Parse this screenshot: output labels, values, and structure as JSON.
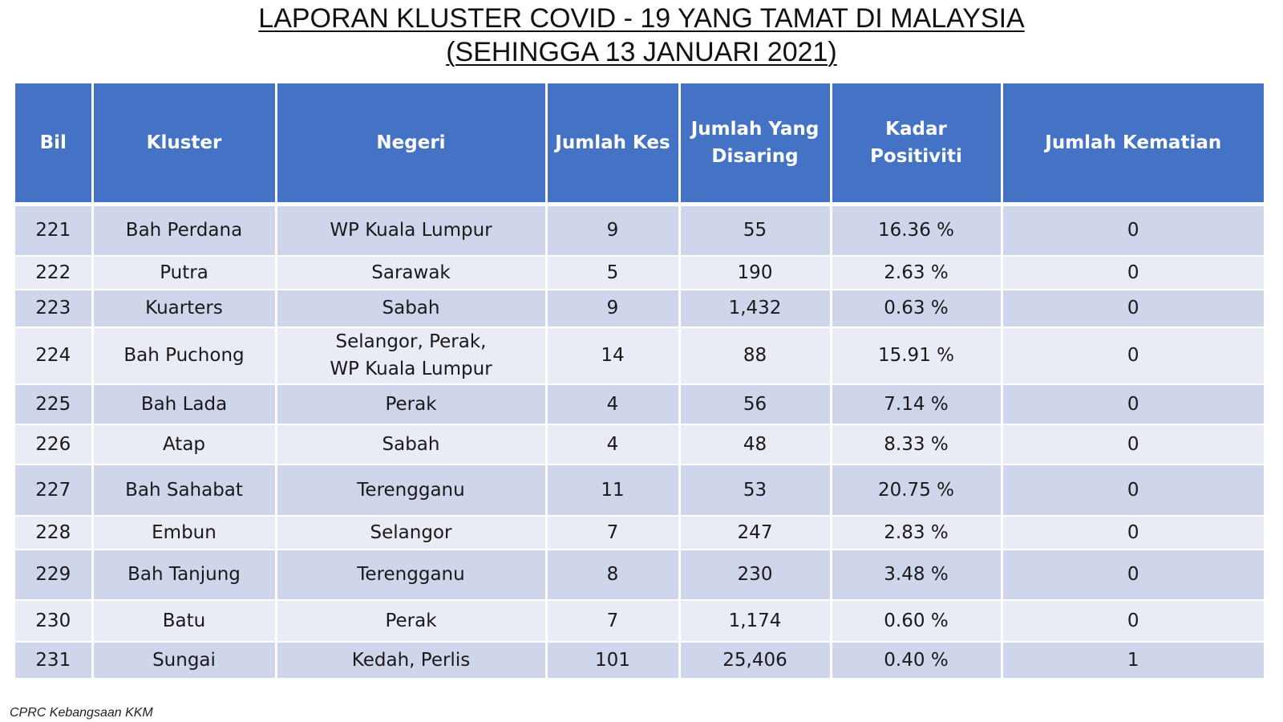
{
  "title": {
    "line1": "LAPORAN KLUSTER COVID - 19 YANG TAMAT DI MALAYSIA",
    "line2": "(SEHINGGA 13 JANUARI 2021)"
  },
  "colors": {
    "header_bg": "#4472c4",
    "row_dark": "#cfd5ea",
    "row_light": "#e9ebf5"
  },
  "table": {
    "headers": {
      "bil": "Bil",
      "kluster": "Kluster",
      "negeri": "Negeri",
      "jumlah_kes": "Jumlah Kes",
      "jumlah_disaring_line1": "Jumlah Yang",
      "jumlah_disaring_line2": "Disaring",
      "kadar_positiviti": "Kadar Positiviti",
      "jumlah_kematian": "Jumlah Kematian"
    },
    "rows": [
      {
        "bil": "221",
        "kluster": "Bah Perdana",
        "negeri_line1": "WP Kuala Lumpur",
        "negeri_line2": "",
        "kes": "9",
        "disaring": "55",
        "positiviti": "16.36 %",
        "kematian": "0"
      },
      {
        "bil": "222",
        "kluster": "Putra",
        "negeri_line1": "Sarawak",
        "negeri_line2": "",
        "kes": "5",
        "disaring": "190",
        "positiviti": "2.63 %",
        "kematian": "0"
      },
      {
        "bil": "223",
        "kluster": "Kuarters",
        "negeri_line1": "Sabah",
        "negeri_line2": "",
        "kes": "9",
        "disaring": "1,432",
        "positiviti": "0.63 %",
        "kematian": "0"
      },
      {
        "bil": "224",
        "kluster": "Bah Puchong",
        "negeri_line1": "Selangor, Perak,",
        "negeri_line2": "WP Kuala Lumpur",
        "kes": "14",
        "disaring": "88",
        "positiviti": "15.91 %",
        "kematian": "0"
      },
      {
        "bil": "225",
        "kluster": "Bah Lada",
        "negeri_line1": "Perak",
        "negeri_line2": "",
        "kes": "4",
        "disaring": "56",
        "positiviti": "7.14 %",
        "kematian": "0"
      },
      {
        "bil": "226",
        "kluster": "Atap",
        "negeri_line1": "Sabah",
        "negeri_line2": "",
        "kes": "4",
        "disaring": "48",
        "positiviti": "8.33 %",
        "kematian": "0"
      },
      {
        "bil": "227",
        "kluster": "Bah Sahabat",
        "negeri_line1": "Terengganu",
        "negeri_line2": "",
        "kes": "11",
        "disaring": "53",
        "positiviti": "20.75 %",
        "kematian": "0"
      },
      {
        "bil": "228",
        "kluster": "Embun",
        "negeri_line1": "Selangor",
        "negeri_line2": "",
        "kes": "7",
        "disaring": "247",
        "positiviti": "2.83 %",
        "kematian": "0"
      },
      {
        "bil": "229",
        "kluster": "Bah Tanjung",
        "negeri_line1": "Terengganu",
        "negeri_line2": "",
        "kes": "8",
        "disaring": "230",
        "positiviti": "3.48 %",
        "kematian": "0"
      },
      {
        "bil": "230",
        "kluster": "Batu",
        "negeri_line1": "Perak",
        "negeri_line2": "",
        "kes": "7",
        "disaring": "1,174",
        "positiviti": "0.60 %",
        "kematian": "0"
      },
      {
        "bil": "231",
        "kluster": "Sungai",
        "negeri_line1": "Kedah, Perlis",
        "negeri_line2": "",
        "kes": "101",
        "disaring": "25,406",
        "positiviti": "0.40 %",
        "kematian": "1"
      }
    ]
  },
  "footer": {
    "source": "CPRC Kebangsaan KKM"
  }
}
